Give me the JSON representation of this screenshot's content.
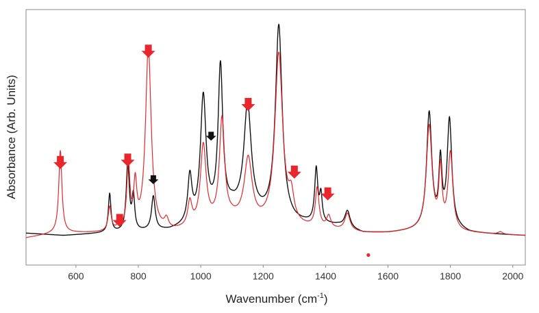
{
  "chart_data": {
    "type": "line",
    "xlabel": "Wavenumber (cm",
    "xlabel_sup": "-1",
    "xlabel_close": ")",
    "ylabel": "Absorbance (Arb. Units)",
    "xlim": [
      440,
      2040
    ],
    "ylim": [
      0,
      1
    ],
    "xticks": [
      600,
      800,
      1000,
      1200,
      1400,
      1600,
      1800,
      2000
    ],
    "grid": false,
    "legend": "none",
    "colors": {
      "black": "#111111",
      "red": "#e8262b",
      "arrow_red": "#e8262b",
      "arrow_black": "#111111"
    },
    "series": [
      {
        "color": "#111111",
        "baseline": [
          [
            440,
            0.12
          ],
          [
            560,
            0.11
          ],
          [
            700,
            0.12
          ],
          [
            900,
            0.13
          ],
          [
            1000,
            0.16
          ],
          [
            1100,
            0.22
          ],
          [
            1180,
            0.19
          ],
          [
            1300,
            0.16
          ],
          [
            1440,
            0.15
          ],
          [
            1520,
            0.12
          ],
          [
            1600,
            0.12
          ],
          [
            1700,
            0.13
          ],
          [
            1830,
            0.13
          ],
          [
            1860,
            0.12
          ],
          [
            2040,
            0.11
          ]
        ],
        "peaks": [
          {
            "x": 708,
            "h": 0.16,
            "w": 5
          },
          {
            "x": 766,
            "h": 0.28,
            "w": 6
          },
          {
            "x": 784,
            "h": 0.14,
            "w": 5
          },
          {
            "x": 848,
            "h": 0.14,
            "w": 7
          },
          {
            "x": 965,
            "h": 0.19,
            "w": 8
          },
          {
            "x": 1008,
            "h": 0.51,
            "w": 11
          },
          {
            "x": 1063,
            "h": 0.6,
            "w": 9
          },
          {
            "x": 1150,
            "h": 0.44,
            "w": 14
          },
          {
            "x": 1250,
            "h": 0.8,
            "w": 13
          },
          {
            "x": 1370,
            "h": 0.22,
            "w": 6
          },
          {
            "x": 1385,
            "h": 0.11,
            "w": 5
          },
          {
            "x": 1470,
            "h": 0.07,
            "w": 10
          },
          {
            "x": 1732,
            "h": 0.48,
            "w": 10
          },
          {
            "x": 1768,
            "h": 0.26,
            "w": 6
          },
          {
            "x": 1797,
            "h": 0.45,
            "w": 9
          }
        ]
      },
      {
        "color": "#e8262b",
        "baseline": [
          [
            440,
            0.1
          ],
          [
            540,
            0.12
          ],
          [
            700,
            0.12
          ],
          [
            900,
            0.12
          ],
          [
            1000,
            0.14
          ],
          [
            1100,
            0.17
          ],
          [
            1180,
            0.15
          ],
          [
            1300,
            0.14
          ],
          [
            1440,
            0.13
          ],
          [
            1520,
            0.12
          ],
          [
            1600,
            0.12
          ],
          [
            1700,
            0.13
          ],
          [
            1830,
            0.12
          ],
          [
            1860,
            0.12
          ],
          [
            2040,
            0.11
          ]
        ],
        "peaks": [
          {
            "x": 550,
            "h": 0.34,
            "w": 6
          },
          {
            "x": 708,
            "h": 0.1,
            "w": 6
          },
          {
            "x": 740,
            "h": 0.04,
            "w": 6
          },
          {
            "x": 768,
            "h": 0.27,
            "w": 6
          },
          {
            "x": 790,
            "h": 0.18,
            "w": 6
          },
          {
            "x": 832,
            "h": 0.76,
            "w": 11
          },
          {
            "x": 890,
            "h": 0.04,
            "w": 8
          },
          {
            "x": 965,
            "h": 0.1,
            "w": 8
          },
          {
            "x": 1008,
            "h": 0.33,
            "w": 11
          },
          {
            "x": 1068,
            "h": 0.42,
            "w": 10
          },
          {
            "x": 1152,
            "h": 0.26,
            "w": 15
          },
          {
            "x": 1250,
            "h": 0.71,
            "w": 15
          },
          {
            "x": 1290,
            "h": 0.1,
            "w": 10
          },
          {
            "x": 1373,
            "h": 0.16,
            "w": 7
          },
          {
            "x": 1410,
            "h": 0.05,
            "w": 8
          },
          {
            "x": 1470,
            "h": 0.07,
            "w": 10
          },
          {
            "x": 1732,
            "h": 0.43,
            "w": 11
          },
          {
            "x": 1768,
            "h": 0.24,
            "w": 6
          },
          {
            "x": 1800,
            "h": 0.32,
            "w": 9
          },
          {
            "x": 1960,
            "h": 0.01,
            "w": 8
          }
        ]
      }
    ],
    "annotations": [
      {
        "type": "arrow",
        "color": "red",
        "x": 550,
        "y": 0.44
      },
      {
        "type": "arrow",
        "color": "red",
        "x": 740,
        "y": 0.2
      },
      {
        "type": "arrow",
        "color": "red",
        "x": 766,
        "y": 0.45
      },
      {
        "type": "arrow",
        "color": "red",
        "x": 832,
        "y": 0.9
      },
      {
        "type": "arrow",
        "color": "black",
        "x": 848,
        "y": 0.36
      },
      {
        "type": "arrow",
        "color": "black",
        "x": 1033,
        "y": 0.54
      },
      {
        "type": "arrow",
        "color": "red",
        "x": 1152,
        "y": 0.68
      },
      {
        "type": "arrow",
        "color": "red",
        "x": 1300,
        "y": 0.4
      },
      {
        "type": "arrow",
        "color": "red",
        "x": 1407,
        "y": 0.31
      },
      {
        "type": "dot",
        "color": "red",
        "x": 1537,
        "y": 0.03
      }
    ]
  }
}
